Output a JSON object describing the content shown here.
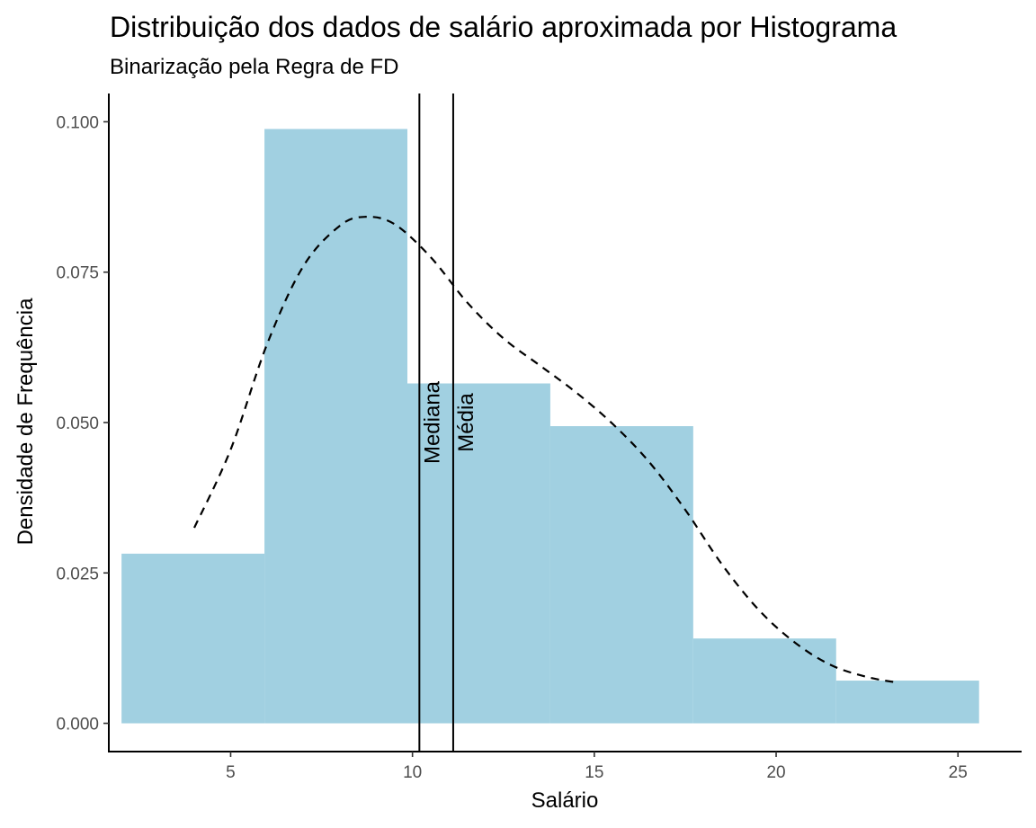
{
  "chart_data": {
    "type": "bar",
    "title": "Distribuição dos dados de salário aproximada por Histograma",
    "subtitle": "Binarização pela Regra de FD",
    "xlabel": "Salário",
    "ylabel": "Densidade de Frequência",
    "xlim": [
      1.65,
      26.75
    ],
    "ylim": [
      -0.0047,
      0.1047
    ],
    "x_ticks": [
      5,
      10,
      15,
      20,
      25
    ],
    "x_tick_labels": [
      "5",
      "10",
      "15",
      "20",
      "25"
    ],
    "y_ticks": [
      0,
      0.025,
      0.05,
      0.075,
      0.1
    ],
    "y_tick_labels": [
      "0.000",
      "0.025",
      "0.050",
      "0.075",
      "0.100"
    ],
    "bins": [
      {
        "start": 2.0,
        "end": 5.93,
        "density": 0.0282
      },
      {
        "start": 5.93,
        "end": 9.86,
        "density": 0.0988
      },
      {
        "start": 9.86,
        "end": 13.79,
        "density": 0.0565
      },
      {
        "start": 13.79,
        "end": 17.72,
        "density": 0.0494
      },
      {
        "start": 17.72,
        "end": 21.65,
        "density": 0.0141
      },
      {
        "start": 21.65,
        "end": 25.58,
        "density": 0.0071
      }
    ],
    "density_curve": {
      "x": [
        4.0,
        5.0,
        6.0,
        7.0,
        8.0,
        8.7,
        9.5,
        10.5,
        11.5,
        12.5,
        13.5,
        14.5,
        15.5,
        16.5,
        17.5,
        18.5,
        19.5,
        20.5,
        21.5,
        22.5,
        23.3
      ],
      "y": [
        0.0325,
        0.0455,
        0.063,
        0.076,
        0.0827,
        0.0842,
        0.083,
        0.0775,
        0.07,
        0.064,
        0.0595,
        0.055,
        0.0498,
        0.0435,
        0.0355,
        0.0265,
        0.019,
        0.0135,
        0.0097,
        0.0077,
        0.0068
      ]
    },
    "vlines": [
      {
        "label": "Mediana",
        "x": 10.19
      },
      {
        "label": "Média",
        "x": 11.12
      }
    ],
    "grid": false,
    "colors": {
      "bar_fill": "#a1d0e1",
      "curve": "#000000",
      "vline": "#000000",
      "axis": "#000000",
      "tick_label": "#4d4d4d"
    }
  }
}
